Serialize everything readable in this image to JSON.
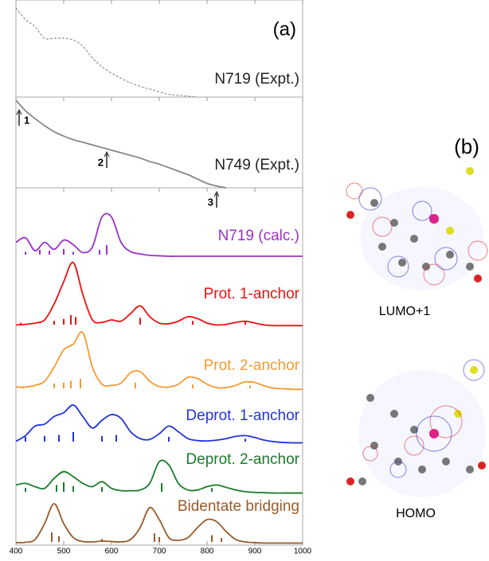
{
  "chart_data": {
    "type": "line",
    "panel_label": "(a)",
    "x": [
      400,
      420,
      440,
      460,
      480,
      500,
      520,
      540,
      560,
      580,
      600,
      620,
      640,
      660,
      680,
      700,
      720,
      740,
      760,
      780,
      800,
      820,
      840,
      860,
      880,
      900,
      920,
      940,
      960,
      980,
      1000
    ],
    "xlim": [
      400,
      1000
    ],
    "xticks": [
      400,
      500,
      600,
      700,
      800,
      900,
      1000
    ],
    "series": [
      {
        "name": "N719 (Expt.)",
        "color": "#999999",
        "dash": true,
        "values": [
          1.0,
          0.87,
          0.79,
          0.66,
          0.66,
          0.66,
          0.64,
          0.57,
          0.44,
          0.34,
          0.27,
          0.21,
          0.16,
          0.12,
          0.09,
          0.06,
          0.03,
          0.02,
          0.01,
          0,
          null,
          null,
          null,
          null,
          null,
          null,
          null,
          null,
          null,
          null,
          null
        ]
      },
      {
        "name": "N749 (Expt.)",
        "color": "#888888",
        "values": [
          1.0,
          0.88,
          0.79,
          0.71,
          0.64,
          0.59,
          0.55,
          0.52,
          0.49,
          0.46,
          0.43,
          0.4,
          0.37,
          0.34,
          0.3,
          0.27,
          0.23,
          0.19,
          0.15,
          0.1,
          0.05,
          0.02,
          0,
          null,
          null,
          null,
          null,
          null,
          null,
          null,
          null
        ]
      },
      {
        "name": "N719 (calc.)",
        "color": "#9b30c8",
        "values": [
          0.3,
          0.4,
          0.12,
          0.3,
          0.15,
          0.35,
          0.25,
          0.08,
          0.2,
          0.85,
          0.85,
          0.3,
          0.1,
          0.05,
          0.02,
          0.01,
          0,
          0,
          0,
          0,
          0,
          0,
          0,
          0,
          0,
          0,
          0,
          0,
          0,
          0,
          0
        ],
        "sticks": {
          "x": [
            420,
            450,
            470,
            500,
            520,
            575,
            590
          ],
          "values": [
            0.3,
            0.5,
            0.4,
            0.6,
            0.3,
            0.5,
            1.0
          ]
        }
      },
      {
        "name": "Prot. 1-anchor",
        "color": "#ee1111",
        "values": [
          0.02,
          0.03,
          0.05,
          0.1,
          0.35,
          0.7,
          1.0,
          0.5,
          0.1,
          0.06,
          0.1,
          0.08,
          0.2,
          0.32,
          0.15,
          0.05,
          0.04,
          0.08,
          0.15,
          0.12,
          0.05,
          0.02,
          0.03,
          0.06,
          0.08,
          0.05,
          0.02,
          0.01,
          0.01,
          0.01,
          0.01
        ],
        "sticks": {
          "x": [
            410,
            480,
            500,
            515,
            525,
            660,
            770,
            880
          ],
          "values": [
            0.2,
            0.4,
            0.6,
            1.0,
            0.8,
            0.7,
            0.4,
            0.3
          ]
        }
      },
      {
        "name": "Prot. 2-anchor",
        "color": "#f59a30",
        "values": [
          0.05,
          0.05,
          0.08,
          0.15,
          0.4,
          0.7,
          0.8,
          1.0,
          0.4,
          0.1,
          0.08,
          0.12,
          0.3,
          0.32,
          0.15,
          0.06,
          0.05,
          0.1,
          0.22,
          0.2,
          0.1,
          0.04,
          0.04,
          0.08,
          0.14,
          0.13,
          0.07,
          0.03,
          0.02,
          0.01,
          0.01
        ],
        "sticks": {
          "x": [
            415,
            480,
            500,
            515,
            535,
            650,
            770,
            890
          ],
          "values": [
            0.2,
            0.5,
            0.6,
            0.8,
            1.0,
            0.6,
            0.4,
            0.3
          ]
        }
      },
      {
        "name": "Deprot. 1-anchor",
        "color": "#2233dd",
        "values": [
          0.05,
          0.2,
          0.45,
          0.5,
          0.7,
          0.8,
          1.0,
          0.7,
          0.4,
          0.6,
          0.75,
          0.65,
          0.3,
          0.12,
          0.1,
          0.25,
          0.45,
          0.3,
          0.12,
          0.07,
          0.06,
          0.08,
          0.12,
          0.18,
          0.2,
          0.15,
          0.08,
          0.04,
          0.02,
          0.01,
          0.01
        ],
        "sticks": {
          "x": [
            420,
            460,
            490,
            520,
            580,
            610,
            720,
            880
          ],
          "values": [
            0.5,
            0.6,
            0.7,
            1.0,
            0.6,
            0.7,
            0.5,
            0.3
          ]
        }
      },
      {
        "name": "Deprot. 2-anchor",
        "color": "#1a7a2a",
        "values": [
          0.25,
          0.3,
          0.2,
          0.15,
          0.45,
          0.65,
          0.5,
          0.3,
          0.2,
          0.35,
          0.15,
          0.08,
          0.08,
          0.1,
          0.3,
          0.95,
          0.85,
          0.3,
          0.1,
          0.1,
          0.2,
          0.25,
          0.18,
          0.1,
          0.05,
          0.03,
          0.02,
          0.01,
          0.01,
          0.01,
          0.01
        ],
        "sticks": {
          "x": [
            420,
            485,
            500,
            520,
            580,
            705,
            810
          ],
          "values": [
            0.4,
            0.7,
            1.0,
            0.6,
            0.5,
            0.9,
            0.4
          ]
        }
      },
      {
        "name": "Bidentate bridging",
        "color": "#9a5a28",
        "values": [
          0.02,
          0.03,
          0.1,
          0.5,
          1.0,
          0.5,
          0.15,
          0.05,
          0.04,
          0.06,
          0.05,
          0.04,
          0.1,
          0.4,
          0.9,
          0.6,
          0.15,
          0.08,
          0.15,
          0.4,
          0.6,
          0.55,
          0.3,
          0.1,
          0.04,
          0.02,
          0.01,
          0.01,
          0.01,
          0.01,
          0.01
        ],
        "sticks": {
          "x": [
            475,
            490,
            580,
            690,
            700,
            810,
            830
          ],
          "values": [
            1.0,
            0.6,
            0.3,
            0.9,
            0.5,
            0.7,
            0.4
          ]
        }
      }
    ],
    "annotations": [
      {
        "label": "1",
        "x": 400
      },
      {
        "label": "2",
        "x": 590
      },
      {
        "label": "3",
        "x": 820
      }
    ]
  },
  "panel_b": {
    "label": "(b)",
    "orbitals": [
      "LUMO+1",
      "HOMO"
    ]
  }
}
